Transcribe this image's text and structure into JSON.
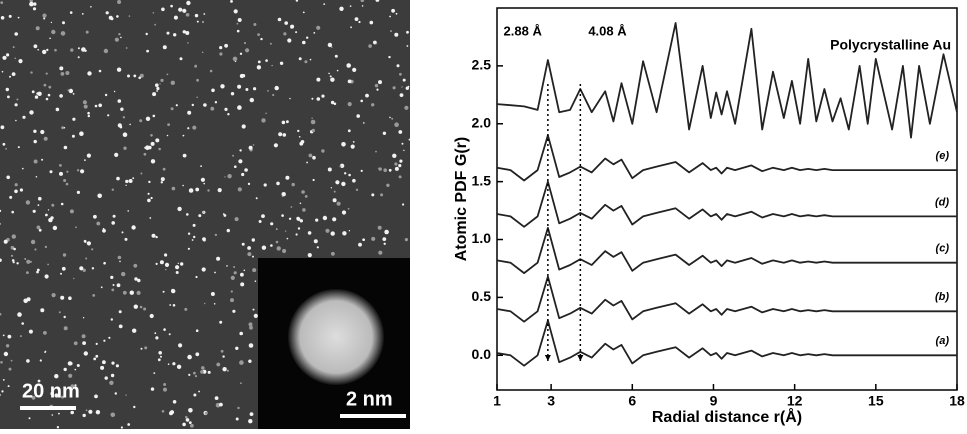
{
  "image_panel": {
    "scale_bar": "20 nm",
    "inset_scale_bar": "2 nm"
  },
  "chart_data": {
    "type": "line",
    "xlabel": "Radial distance r(Å)",
    "ylabel": "Atomic PDF G(r)",
    "xlim": [
      1,
      18
    ],
    "xticks": [
      1,
      3,
      6,
      9,
      12,
      15,
      18
    ],
    "ylim": [
      -0.3,
      3.0
    ],
    "yticks": [
      {
        "value": 0,
        "label": "0.0"
      },
      {
        "value": 0.5,
        "label": "0.5"
      },
      {
        "value": 1,
        "label": "1.0"
      },
      {
        "value": 1.5,
        "label": "1.5"
      },
      {
        "value": 2,
        "label": "2.0"
      },
      {
        "value": 2.5,
        "label": "2.5"
      }
    ],
    "annotations": [
      {
        "text": "2.88 Å",
        "x": 2.88
      },
      {
        "text": "4.08 Å",
        "x": 4.08
      }
    ],
    "x": [
      1,
      1.5,
      2,
      2.5,
      2.88,
      3.3,
      3.7,
      4.08,
      4.5,
      5,
      5.3,
      5.6,
      6,
      6.4,
      6.9,
      7.6,
      8.1,
      8.6,
      8.9,
      9.1,
      9.3,
      9.5,
      9.8,
      10.4,
      10.8,
      11.2,
      11.6,
      11.9,
      12.2,
      12.5,
      12.8,
      13.1,
      13.4,
      13.7,
      14,
      14.4,
      14.7,
      15,
      15.6,
      16,
      16.3,
      16.6,
      17,
      17.5,
      18
    ],
    "series": [
      {
        "name": "(a)",
        "color": "#222222",
        "values": [
          0.02,
          0,
          -0.09,
          0,
          0.3,
          -0.06,
          -0.02,
          0.03,
          -0.02,
          0.1,
          0.05,
          0.09,
          -0.07,
          0,
          0.03,
          0.07,
          -0.02,
          0.06,
          0,
          0.02,
          -0.03,
          0.02,
          0,
          0.04,
          -0.01,
          0.02,
          0,
          0.02,
          0,
          0.01,
          0,
          0.01,
          0,
          0,
          0,
          0,
          0,
          0,
          0,
          0,
          0,
          0,
          0,
          0,
          0
        ]
      },
      {
        "name": "(b)",
        "color": "#222222",
        "values": [
          0.4,
          0.38,
          0.29,
          0.38,
          0.68,
          0.32,
          0.36,
          0.41,
          0.36,
          0.48,
          0.43,
          0.47,
          0.31,
          0.38,
          0.41,
          0.45,
          0.36,
          0.44,
          0.38,
          0.4,
          0.35,
          0.4,
          0.38,
          0.42,
          0.37,
          0.4,
          0.38,
          0.4,
          0.38,
          0.39,
          0.38,
          0.39,
          0.38,
          0.38,
          0.38,
          0.38,
          0.38,
          0.38,
          0.38,
          0.38,
          0.38,
          0.38,
          0.38,
          0.38,
          0.38
        ]
      },
      {
        "name": "(c)",
        "color": "#222222",
        "values": [
          0.82,
          0.8,
          0.71,
          0.8,
          1.1,
          0.74,
          0.78,
          0.83,
          0.78,
          0.9,
          0.85,
          0.89,
          0.73,
          0.8,
          0.83,
          0.87,
          0.78,
          0.86,
          0.8,
          0.82,
          0.77,
          0.82,
          0.8,
          0.84,
          0.79,
          0.82,
          0.8,
          0.82,
          0.8,
          0.81,
          0.8,
          0.81,
          0.8,
          0.8,
          0.8,
          0.8,
          0.8,
          0.8,
          0.8,
          0.8,
          0.8,
          0.8,
          0.8,
          0.8,
          0.8
        ]
      },
      {
        "name": "(d)",
        "color": "#222222",
        "values": [
          1.22,
          1.2,
          1.11,
          1.2,
          1.5,
          1.14,
          1.18,
          1.23,
          1.18,
          1.3,
          1.25,
          1.29,
          1.13,
          1.2,
          1.23,
          1.27,
          1.18,
          1.26,
          1.2,
          1.22,
          1.17,
          1.22,
          1.2,
          1.24,
          1.19,
          1.22,
          1.2,
          1.22,
          1.2,
          1.21,
          1.2,
          1.21,
          1.2,
          1.2,
          1.2,
          1.2,
          1.2,
          1.2,
          1.2,
          1.2,
          1.2,
          1.2,
          1.2,
          1.2,
          1.2
        ]
      },
      {
        "name": "(e)",
        "color": "#222222",
        "values": [
          1.62,
          1.6,
          1.51,
          1.6,
          1.9,
          1.54,
          1.58,
          1.63,
          1.58,
          1.7,
          1.65,
          1.69,
          1.53,
          1.6,
          1.63,
          1.67,
          1.58,
          1.66,
          1.6,
          1.62,
          1.57,
          1.62,
          1.6,
          1.64,
          1.59,
          1.62,
          1.6,
          1.62,
          1.6,
          1.61,
          1.6,
          1.61,
          1.6,
          1.6,
          1.6,
          1.6,
          1.6,
          1.6,
          1.6,
          1.6,
          1.6,
          1.6,
          1.6,
          1.6,
          1.6
        ]
      },
      {
        "name": "Polycrystalline Au",
        "color": "#222222",
        "values": [
          2.17,
          2.16,
          2.15,
          2.12,
          2.55,
          2.1,
          2.12,
          2.3,
          2.1,
          2.28,
          2.02,
          2.35,
          2.0,
          2.54,
          2.1,
          2.87,
          1.95,
          2.5,
          2.05,
          2.27,
          2.08,
          2.28,
          2.0,
          2.82,
          1.95,
          2.45,
          2.05,
          2.37,
          2.0,
          2.56,
          2.02,
          2.3,
          2.02,
          2.22,
          1.95,
          2.5,
          2.0,
          2.56,
          1.95,
          2.5,
          1.88,
          2.5,
          2.0,
          2.6,
          2.1
        ]
      }
    ]
  }
}
